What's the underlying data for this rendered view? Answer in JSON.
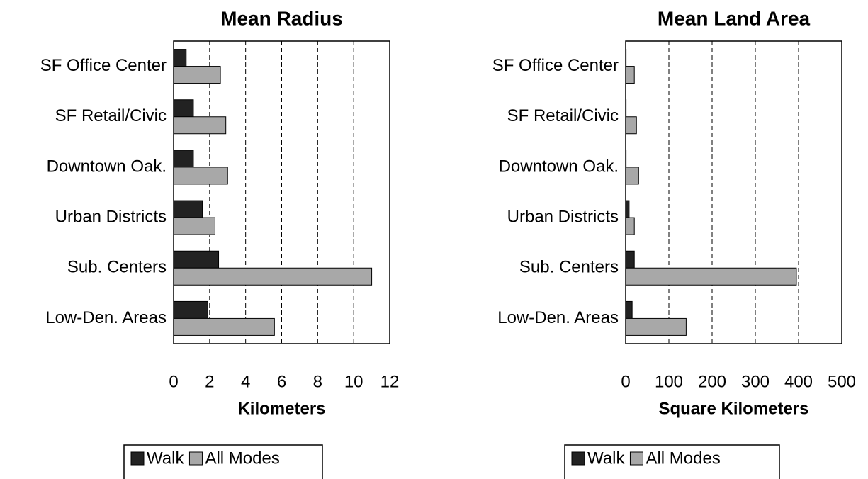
{
  "chart_data": [
    {
      "type": "bar",
      "orientation": "horizontal",
      "title": "Mean Radius",
      "xlabel": "Kilometers",
      "categories": [
        "SF Office Center",
        "SF Retail/Civic",
        "Downtown Oak.",
        "Urban Districts",
        "Sub. Centers",
        "Low-Den. Areas"
      ],
      "series": [
        {
          "name": "Walk",
          "color": "#222222",
          "values": [
            0.7,
            1.1,
            1.1,
            1.6,
            2.5,
            1.9
          ]
        },
        {
          "name": "All Modes",
          "color": "#a8a8a8",
          "values": [
            2.6,
            2.9,
            3.0,
            2.3,
            11.0,
            5.6
          ]
        }
      ],
      "xlim": [
        0,
        12
      ],
      "xticks": [
        0,
        2,
        4,
        6,
        8,
        10,
        12
      ],
      "grid": true,
      "legend": "bottom"
    },
    {
      "type": "bar",
      "orientation": "horizontal",
      "title": "Mean Land Area",
      "xlabel": "Square Kilometers",
      "categories": [
        "SF Office Center",
        "SF Retail/Civic",
        "Downtown Oak.",
        "Urban Districts",
        "Sub. Centers",
        "Low-Den. Areas"
      ],
      "series": [
        {
          "name": "Walk",
          "color": "#222222",
          "values": [
            1,
            1,
            1,
            8,
            20,
            15
          ]
        },
        {
          "name": "All Modes",
          "color": "#a8a8a8",
          "values": [
            20,
            25,
            30,
            20,
            395,
            140
          ]
        }
      ],
      "xlim": [
        0,
        500
      ],
      "xticks": [
        0,
        100,
        200,
        300,
        400,
        500
      ],
      "grid": true,
      "legend": "bottom"
    }
  ]
}
